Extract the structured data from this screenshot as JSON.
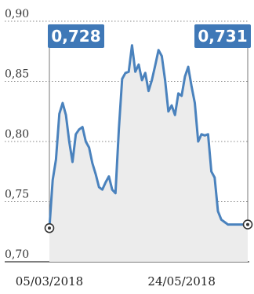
{
  "colors": {
    "line": "#4a82bd",
    "area": "#ececec",
    "callout_bg": "#3f78b7"
  },
  "chart_data": {
    "type": "area",
    "title": "",
    "xlabel": "",
    "ylabel": "",
    "ylim": [
      0.7,
      0.9
    ],
    "yticks": [
      "0,70",
      "0,75",
      "0,80",
      "0,85",
      "0,90"
    ],
    "ytick_values": [
      0.7,
      0.75,
      0.8,
      0.85,
      0.9
    ],
    "xtick_labels": [
      "05/03/2018",
      "24/05/2018"
    ],
    "xtick_values": [
      "2018-03-05",
      "2018-05-24"
    ],
    "grid": true,
    "series": [
      {
        "x": [
          "2018-03-05",
          "2018-03-07",
          "2018-03-09",
          "2018-03-11",
          "2018-03-13",
          "2018-03-15",
          "2018-03-17",
          "2018-03-19",
          "2018-03-21",
          "2018-03-23",
          "2018-03-25",
          "2018-03-27",
          "2018-03-29",
          "2018-03-31",
          "2018-04-02",
          "2018-04-04",
          "2018-04-06",
          "2018-04-08",
          "2018-04-10",
          "2018-04-12",
          "2018-04-14",
          "2018-04-16",
          "2018-04-18",
          "2018-04-20",
          "2018-04-22",
          "2018-04-24",
          "2018-04-26",
          "2018-04-28",
          "2018-04-30",
          "2018-05-02",
          "2018-05-04",
          "2018-05-06",
          "2018-05-08",
          "2018-05-10",
          "2018-05-12",
          "2018-05-14",
          "2018-05-16",
          "2018-05-18",
          "2018-05-20",
          "2018-05-22",
          "2018-05-24",
          "2018-05-26",
          "2018-05-28",
          "2018-05-30",
          "2018-06-01",
          "2018-06-03",
          "2018-06-05",
          "2018-06-07",
          "2018-06-09",
          "2018-06-11",
          "2018-06-13",
          "2018-06-15",
          "2018-06-17",
          "2018-06-19",
          "2018-06-21",
          "2018-06-23",
          "2018-06-25",
          "2018-06-27",
          "2018-06-29",
          "2018-07-01",
          "2018-07-03"
        ],
        "values": [
          0.728,
          0.768,
          0.785,
          0.823,
          0.832,
          0.822,
          0.8,
          0.783,
          0.806,
          0.81,
          0.812,
          0.8,
          0.795,
          0.782,
          0.773,
          0.762,
          0.76,
          0.766,
          0.771,
          0.76,
          0.757,
          0.81,
          0.852,
          0.857,
          0.858,
          0.88,
          0.858,
          0.864,
          0.851,
          0.857,
          0.842,
          0.851,
          0.863,
          0.876,
          0.871,
          0.851,
          0.825,
          0.83,
          0.822,
          0.84,
          0.838,
          0.854,
          0.862,
          0.846,
          0.832,
          0.8,
          0.806,
          0.805,
          0.806,
          0.775,
          0.77,
          0.742,
          0.735,
          0.733,
          0.731,
          0.731,
          0.731,
          0.731,
          0.731,
          0.731,
          0.731
        ]
      }
    ],
    "annotations": [
      {
        "label": "0,728",
        "x": "2018-03-05",
        "value": 0.728
      },
      {
        "label": "0,731",
        "x": "2018-07-03",
        "value": 0.731
      }
    ]
  }
}
